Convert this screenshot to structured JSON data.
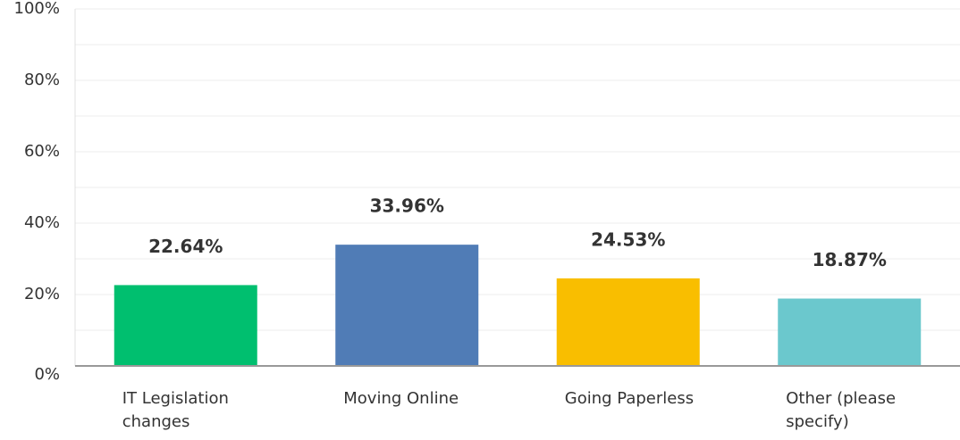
{
  "chart_data": {
    "type": "bar",
    "categories": [
      "IT Legislation changes",
      "Moving Online",
      "Going Paperless",
      "Other (please specify)"
    ],
    "values": [
      22.64,
      33.96,
      24.53,
      18.87
    ],
    "value_labels": [
      "22.64%",
      "33.96%",
      "24.53%",
      "18.87%"
    ],
    "colors": [
      "#00bf6f",
      "#507cb6",
      "#f9be00",
      "#6bc8cd"
    ],
    "ylim": [
      0,
      100
    ],
    "yticks": [
      {
        "value": 0,
        "label": "0%"
      },
      {
        "value": 20,
        "label": "20%"
      },
      {
        "value": 40,
        "label": "40%"
      },
      {
        "value": 60,
        "label": "60%"
      },
      {
        "value": 80,
        "label": "80%"
      },
      {
        "value": 100,
        "label": "100%"
      }
    ],
    "minor_yticks": [
      10,
      30,
      50,
      70,
      90
    ],
    "grid": true
  }
}
